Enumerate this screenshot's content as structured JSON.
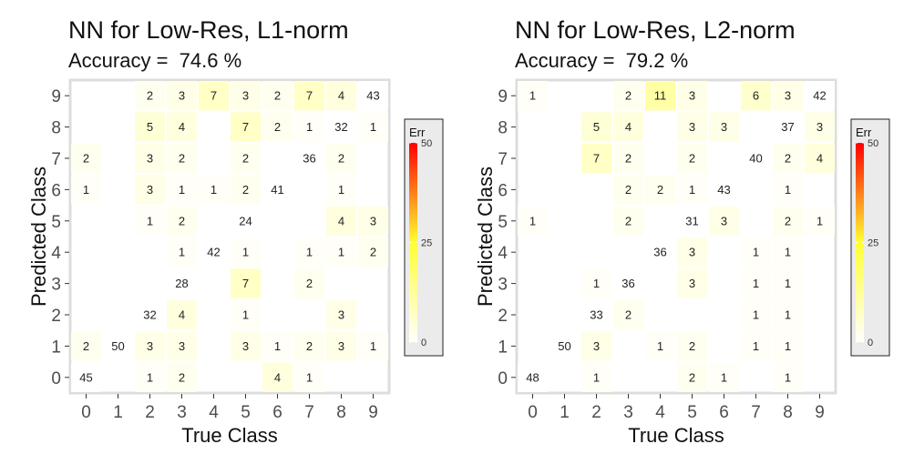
{
  "colors": {
    "scale_low": "#ffffff",
    "scale_mid": "#ffff33",
    "scale_high": "#ff0000",
    "plot_border": "#dddddd",
    "legend_bg": "#ebebeb"
  },
  "chart_data": [
    {
      "type": "heatmap",
      "title": "NN for Low-Res, L1-norm",
      "subtitle": "Accuracy =  74.6 %",
      "xlabel": "True Class",
      "ylabel": "Predicted Class",
      "x_ticks": [
        "0",
        "1",
        "2",
        "3",
        "4",
        "5",
        "6",
        "7",
        "8",
        "9"
      ],
      "y_ticks": [
        "0",
        "1",
        "2",
        "3",
        "4",
        "5",
        "6",
        "7",
        "8",
        "9"
      ],
      "legend": {
        "title": "Err",
        "range": [
          0,
          50
        ],
        "ticks": [
          "0",
          "25",
          "50"
        ],
        "position": "right"
      },
      "grid": false,
      "cells": [
        [
          0,
          9,
          null
        ],
        [
          1,
          9,
          null
        ],
        [
          2,
          9,
          2
        ],
        [
          3,
          9,
          3
        ],
        [
          4,
          9,
          7
        ],
        [
          5,
          9,
          3
        ],
        [
          6,
          9,
          2
        ],
        [
          7,
          9,
          7
        ],
        [
          8,
          9,
          4
        ],
        [
          9,
          9,
          43
        ],
        [
          0,
          8,
          null
        ],
        [
          1,
          8,
          null
        ],
        [
          2,
          8,
          5
        ],
        [
          3,
          8,
          4
        ],
        [
          4,
          8,
          null
        ],
        [
          5,
          8,
          7
        ],
        [
          6,
          8,
          2
        ],
        [
          7,
          8,
          1
        ],
        [
          8,
          8,
          32
        ],
        [
          9,
          8,
          1
        ],
        [
          0,
          7,
          2
        ],
        [
          1,
          7,
          null
        ],
        [
          2,
          7,
          3
        ],
        [
          3,
          7,
          2
        ],
        [
          4,
          7,
          null
        ],
        [
          5,
          7,
          2
        ],
        [
          6,
          7,
          null
        ],
        [
          7,
          7,
          36
        ],
        [
          8,
          7,
          2
        ],
        [
          9,
          7,
          null
        ],
        [
          0,
          6,
          1
        ],
        [
          1,
          6,
          null
        ],
        [
          2,
          6,
          3
        ],
        [
          3,
          6,
          1
        ],
        [
          4,
          6,
          1
        ],
        [
          5,
          6,
          2
        ],
        [
          6,
          6,
          41
        ],
        [
          7,
          6,
          null
        ],
        [
          8,
          6,
          1
        ],
        [
          9,
          6,
          null
        ],
        [
          0,
          5,
          null
        ],
        [
          1,
          5,
          null
        ],
        [
          2,
          5,
          1
        ],
        [
          3,
          5,
          2
        ],
        [
          4,
          5,
          null
        ],
        [
          5,
          5,
          24
        ],
        [
          6,
          5,
          null
        ],
        [
          7,
          5,
          null
        ],
        [
          8,
          5,
          4
        ],
        [
          9,
          5,
          3
        ],
        [
          0,
          4,
          null
        ],
        [
          1,
          4,
          null
        ],
        [
          2,
          4,
          null
        ],
        [
          3,
          4,
          1
        ],
        [
          4,
          4,
          42
        ],
        [
          5,
          4,
          1
        ],
        [
          6,
          4,
          null
        ],
        [
          7,
          4,
          1
        ],
        [
          8,
          4,
          1
        ],
        [
          9,
          4,
          2
        ],
        [
          0,
          3,
          null
        ],
        [
          1,
          3,
          null
        ],
        [
          2,
          3,
          null
        ],
        [
          3,
          3,
          28
        ],
        [
          4,
          3,
          null
        ],
        [
          5,
          3,
          7
        ],
        [
          6,
          3,
          null
        ],
        [
          7,
          3,
          2
        ],
        [
          8,
          3,
          null
        ],
        [
          9,
          3,
          null
        ],
        [
          0,
          2,
          null
        ],
        [
          1,
          2,
          null
        ],
        [
          2,
          2,
          32
        ],
        [
          3,
          2,
          4
        ],
        [
          4,
          2,
          null
        ],
        [
          5,
          2,
          1
        ],
        [
          6,
          2,
          null
        ],
        [
          7,
          2,
          null
        ],
        [
          8,
          2,
          3
        ],
        [
          9,
          2,
          null
        ],
        [
          0,
          1,
          2
        ],
        [
          1,
          1,
          50
        ],
        [
          2,
          1,
          3
        ],
        [
          3,
          1,
          3
        ],
        [
          4,
          1,
          null
        ],
        [
          5,
          1,
          3
        ],
        [
          6,
          1,
          1
        ],
        [
          7,
          1,
          2
        ],
        [
          8,
          1,
          3
        ],
        [
          9,
          1,
          1
        ],
        [
          0,
          0,
          45
        ],
        [
          1,
          0,
          null
        ],
        [
          2,
          0,
          1
        ],
        [
          3,
          0,
          2
        ],
        [
          4,
          0,
          null
        ],
        [
          5,
          0,
          null
        ],
        [
          6,
          0,
          4
        ],
        [
          7,
          0,
          1
        ],
        [
          8,
          0,
          null
        ],
        [
          9,
          0,
          null
        ]
      ]
    },
    {
      "type": "heatmap",
      "title": "NN for Low-Res, L2-norm",
      "subtitle": "Accuracy =  79.2 %",
      "xlabel": "True Class",
      "ylabel": "Predicted Class",
      "x_ticks": [
        "0",
        "1",
        "2",
        "3",
        "4",
        "5",
        "6",
        "7",
        "8",
        "9"
      ],
      "y_ticks": [
        "0",
        "1",
        "2",
        "3",
        "4",
        "5",
        "6",
        "7",
        "8",
        "9"
      ],
      "legend": {
        "title": "Err",
        "range": [
          0,
          50
        ],
        "ticks": [
          "0",
          "25",
          "50"
        ],
        "position": "right"
      },
      "grid": false,
      "cells": [
        [
          0,
          9,
          1
        ],
        [
          1,
          9,
          null
        ],
        [
          2,
          9,
          null
        ],
        [
          3,
          9,
          2
        ],
        [
          4,
          9,
          11
        ],
        [
          5,
          9,
          3
        ],
        [
          6,
          9,
          null
        ],
        [
          7,
          9,
          6
        ],
        [
          8,
          9,
          3
        ],
        [
          9,
          9,
          42
        ],
        [
          0,
          8,
          null
        ],
        [
          1,
          8,
          null
        ],
        [
          2,
          8,
          5
        ],
        [
          3,
          8,
          4
        ],
        [
          4,
          8,
          null
        ],
        [
          5,
          8,
          3
        ],
        [
          6,
          8,
          3
        ],
        [
          7,
          8,
          null
        ],
        [
          8,
          8,
          37
        ],
        [
          9,
          8,
          3
        ],
        [
          0,
          7,
          null
        ],
        [
          1,
          7,
          null
        ],
        [
          2,
          7,
          7
        ],
        [
          3,
          7,
          2
        ],
        [
          4,
          7,
          null
        ],
        [
          5,
          7,
          2
        ],
        [
          6,
          7,
          null
        ],
        [
          7,
          7,
          40
        ],
        [
          8,
          7,
          2
        ],
        [
          9,
          7,
          4
        ],
        [
          0,
          6,
          null
        ],
        [
          1,
          6,
          null
        ],
        [
          2,
          6,
          null
        ],
        [
          3,
          6,
          2
        ],
        [
          4,
          6,
          2
        ],
        [
          5,
          6,
          1
        ],
        [
          6,
          6,
          43
        ],
        [
          7,
          6,
          null
        ],
        [
          8,
          6,
          1
        ],
        [
          9,
          6,
          null
        ],
        [
          0,
          5,
          1
        ],
        [
          1,
          5,
          null
        ],
        [
          2,
          5,
          null
        ],
        [
          3,
          5,
          2
        ],
        [
          4,
          5,
          null
        ],
        [
          5,
          5,
          31
        ],
        [
          6,
          5,
          3
        ],
        [
          7,
          5,
          null
        ],
        [
          8,
          5,
          2
        ],
        [
          9,
          5,
          1
        ],
        [
          0,
          4,
          null
        ],
        [
          1,
          4,
          null
        ],
        [
          2,
          4,
          null
        ],
        [
          3,
          4,
          null
        ],
        [
          4,
          4,
          36
        ],
        [
          5,
          4,
          3
        ],
        [
          6,
          4,
          null
        ],
        [
          7,
          4,
          1
        ],
        [
          8,
          4,
          1
        ],
        [
          9,
          4,
          null
        ],
        [
          0,
          3,
          null
        ],
        [
          1,
          3,
          null
        ],
        [
          2,
          3,
          1
        ],
        [
          3,
          3,
          36
        ],
        [
          4,
          3,
          null
        ],
        [
          5,
          3,
          3
        ],
        [
          6,
          3,
          null
        ],
        [
          7,
          3,
          1
        ],
        [
          8,
          3,
          1
        ],
        [
          9,
          3,
          null
        ],
        [
          0,
          2,
          null
        ],
        [
          1,
          2,
          null
        ],
        [
          2,
          2,
          33
        ],
        [
          3,
          2,
          2
        ],
        [
          4,
          2,
          null
        ],
        [
          5,
          2,
          null
        ],
        [
          6,
          2,
          null
        ],
        [
          7,
          2,
          1
        ],
        [
          8,
          2,
          1
        ],
        [
          9,
          2,
          null
        ],
        [
          0,
          1,
          null
        ],
        [
          1,
          1,
          50
        ],
        [
          2,
          1,
          3
        ],
        [
          3,
          1,
          null
        ],
        [
          4,
          1,
          1
        ],
        [
          5,
          1,
          2
        ],
        [
          6,
          1,
          null
        ],
        [
          7,
          1,
          1
        ],
        [
          8,
          1,
          1
        ],
        [
          9,
          1,
          null
        ],
        [
          0,
          0,
          48
        ],
        [
          1,
          0,
          null
        ],
        [
          2,
          0,
          1
        ],
        [
          3,
          0,
          null
        ],
        [
          4,
          0,
          null
        ],
        [
          5,
          0,
          2
        ],
        [
          6,
          0,
          1
        ],
        [
          7,
          0,
          null
        ],
        [
          8,
          0,
          1
        ],
        [
          9,
          0,
          null
        ]
      ]
    }
  ]
}
